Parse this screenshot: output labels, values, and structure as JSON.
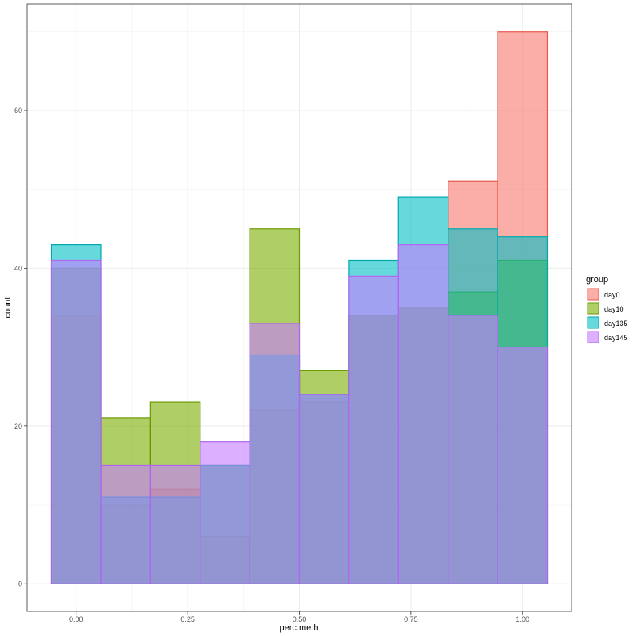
{
  "chart_data": {
    "type": "histogram",
    "xlabel": "perc.meth",
    "ylabel": "count",
    "xlim": [
      -0.11,
      1.11
    ],
    "ylim": [
      -3.5,
      73.5
    ],
    "x_ticks": [
      0.0,
      0.25,
      0.5,
      0.75,
      1.0
    ],
    "x_tick_labels": [
      "0.00",
      "0.25",
      "0.50",
      "0.75",
      "1.00"
    ],
    "y_ticks": [
      0,
      20,
      40,
      60
    ],
    "y_tick_labels": [
      "0",
      "20",
      "40",
      "60"
    ],
    "grid": true,
    "legend": {
      "title": "group",
      "position": "right"
    },
    "bins": [
      [
        -0.0556,
        0.0556
      ],
      [
        0.0556,
        0.1667
      ],
      [
        0.1667,
        0.2778
      ],
      [
        0.2778,
        0.3889
      ],
      [
        0.3889,
        0.5
      ],
      [
        0.5,
        0.6111
      ],
      [
        0.6111,
        0.7222
      ],
      [
        0.7222,
        0.8333
      ],
      [
        0.8333,
        0.9444
      ],
      [
        0.9444,
        1.0556
      ]
    ],
    "series": [
      {
        "name": "day0",
        "fill": "#F8766D",
        "stroke": "#E8574C",
        "values": [
          34,
          10,
          12,
          6,
          22,
          23,
          34,
          35,
          51,
          70
        ]
      },
      {
        "name": "day10",
        "fill": "#7CAE00",
        "stroke": "#6A9A00",
        "values": [
          40,
          21,
          23,
          15,
          45,
          27,
          34,
          35,
          37,
          41
        ]
      },
      {
        "name": "day135",
        "fill": "#00BFC4",
        "stroke": "#00A9AE",
        "values": [
          43,
          11,
          11,
          15,
          29,
          24,
          41,
          49,
          45,
          44
        ]
      },
      {
        "name": "day145",
        "fill": "#C77CFF",
        "stroke": "#B266F0",
        "values": [
          41,
          15,
          15,
          18,
          33,
          24,
          39,
          43,
          34,
          30
        ]
      }
    ]
  }
}
